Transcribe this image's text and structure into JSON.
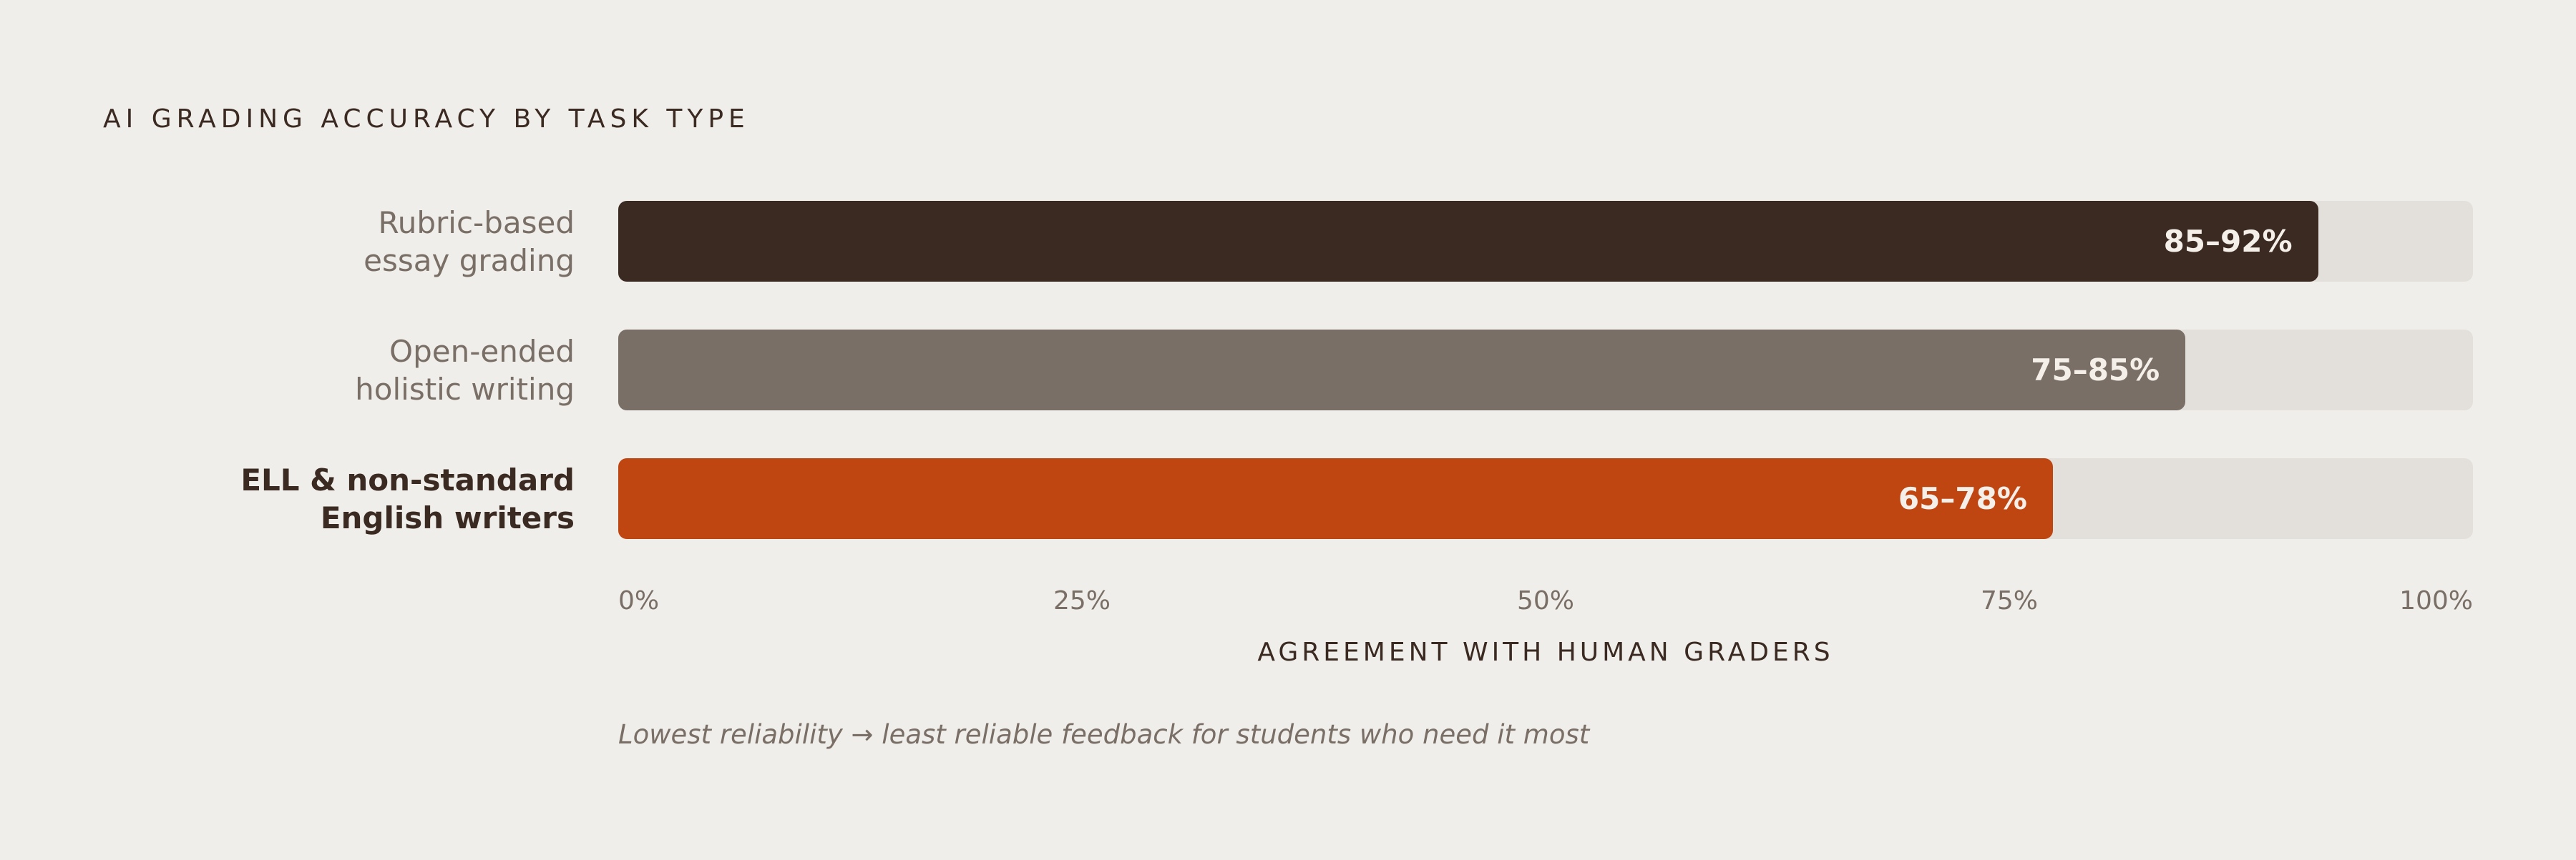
{
  "chart_data": {
    "type": "bar",
    "orientation": "horizontal",
    "title": "AI GRADING ACCURACY BY TASK TYPE",
    "xlabel": "AGREEMENT WITH HUMAN GRADERS",
    "xlim": [
      0,
      100
    ],
    "ticks": [
      "0%",
      "25%",
      "50%",
      "75%",
      "100%"
    ],
    "tick_values": [
      0,
      25,
      50,
      75,
      100
    ],
    "categories": [
      {
        "lines": [
          "Rubric-based",
          "essay grading"
        ],
        "value_label": "85–92%",
        "low": 85,
        "high": 92,
        "color": "#3b2a21",
        "emphasis": false
      },
      {
        "lines": [
          "Open-ended",
          "holistic writing"
        ],
        "value_label": "75–85%",
        "low": 75,
        "high": 85,
        "color": "#7a6f66",
        "emphasis": false
      },
      {
        "lines": [
          "ELL & non-standard",
          "English writers"
        ],
        "value_label": "65–78%",
        "low": 65,
        "high": 78,
        "color": "#bf4511",
        "emphasis": true
      }
    ],
    "annotation": "Lowest reliability → least reliable feedback for students who need it most",
    "track_color": "#e3e0db"
  }
}
